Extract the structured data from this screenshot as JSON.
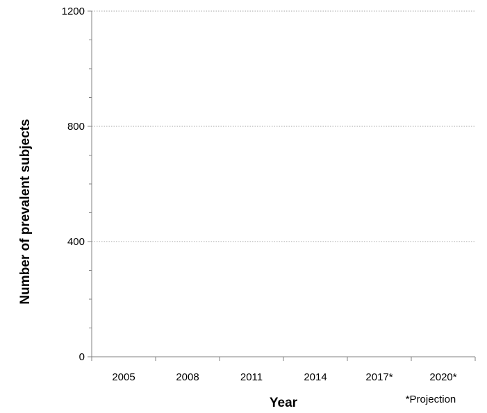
{
  "chart_data": {
    "type": "bar",
    "categories": [
      "2005",
      "2008",
      "2011",
      "2014",
      "2017*",
      "2020*"
    ],
    "series": [],
    "title": "",
    "xlabel": "Year",
    "ylabel": "Number of prevalent subjects",
    "ylim": [
      0,
      1200
    ],
    "yticks": [
      "0",
      "400",
      "800",
      "1200"
    ],
    "grid": true,
    "legend": "none",
    "note": "*Projection",
    "colors": {
      "axis": "#808080",
      "grid": "#a6a6a6",
      "text": "#000000"
    }
  }
}
